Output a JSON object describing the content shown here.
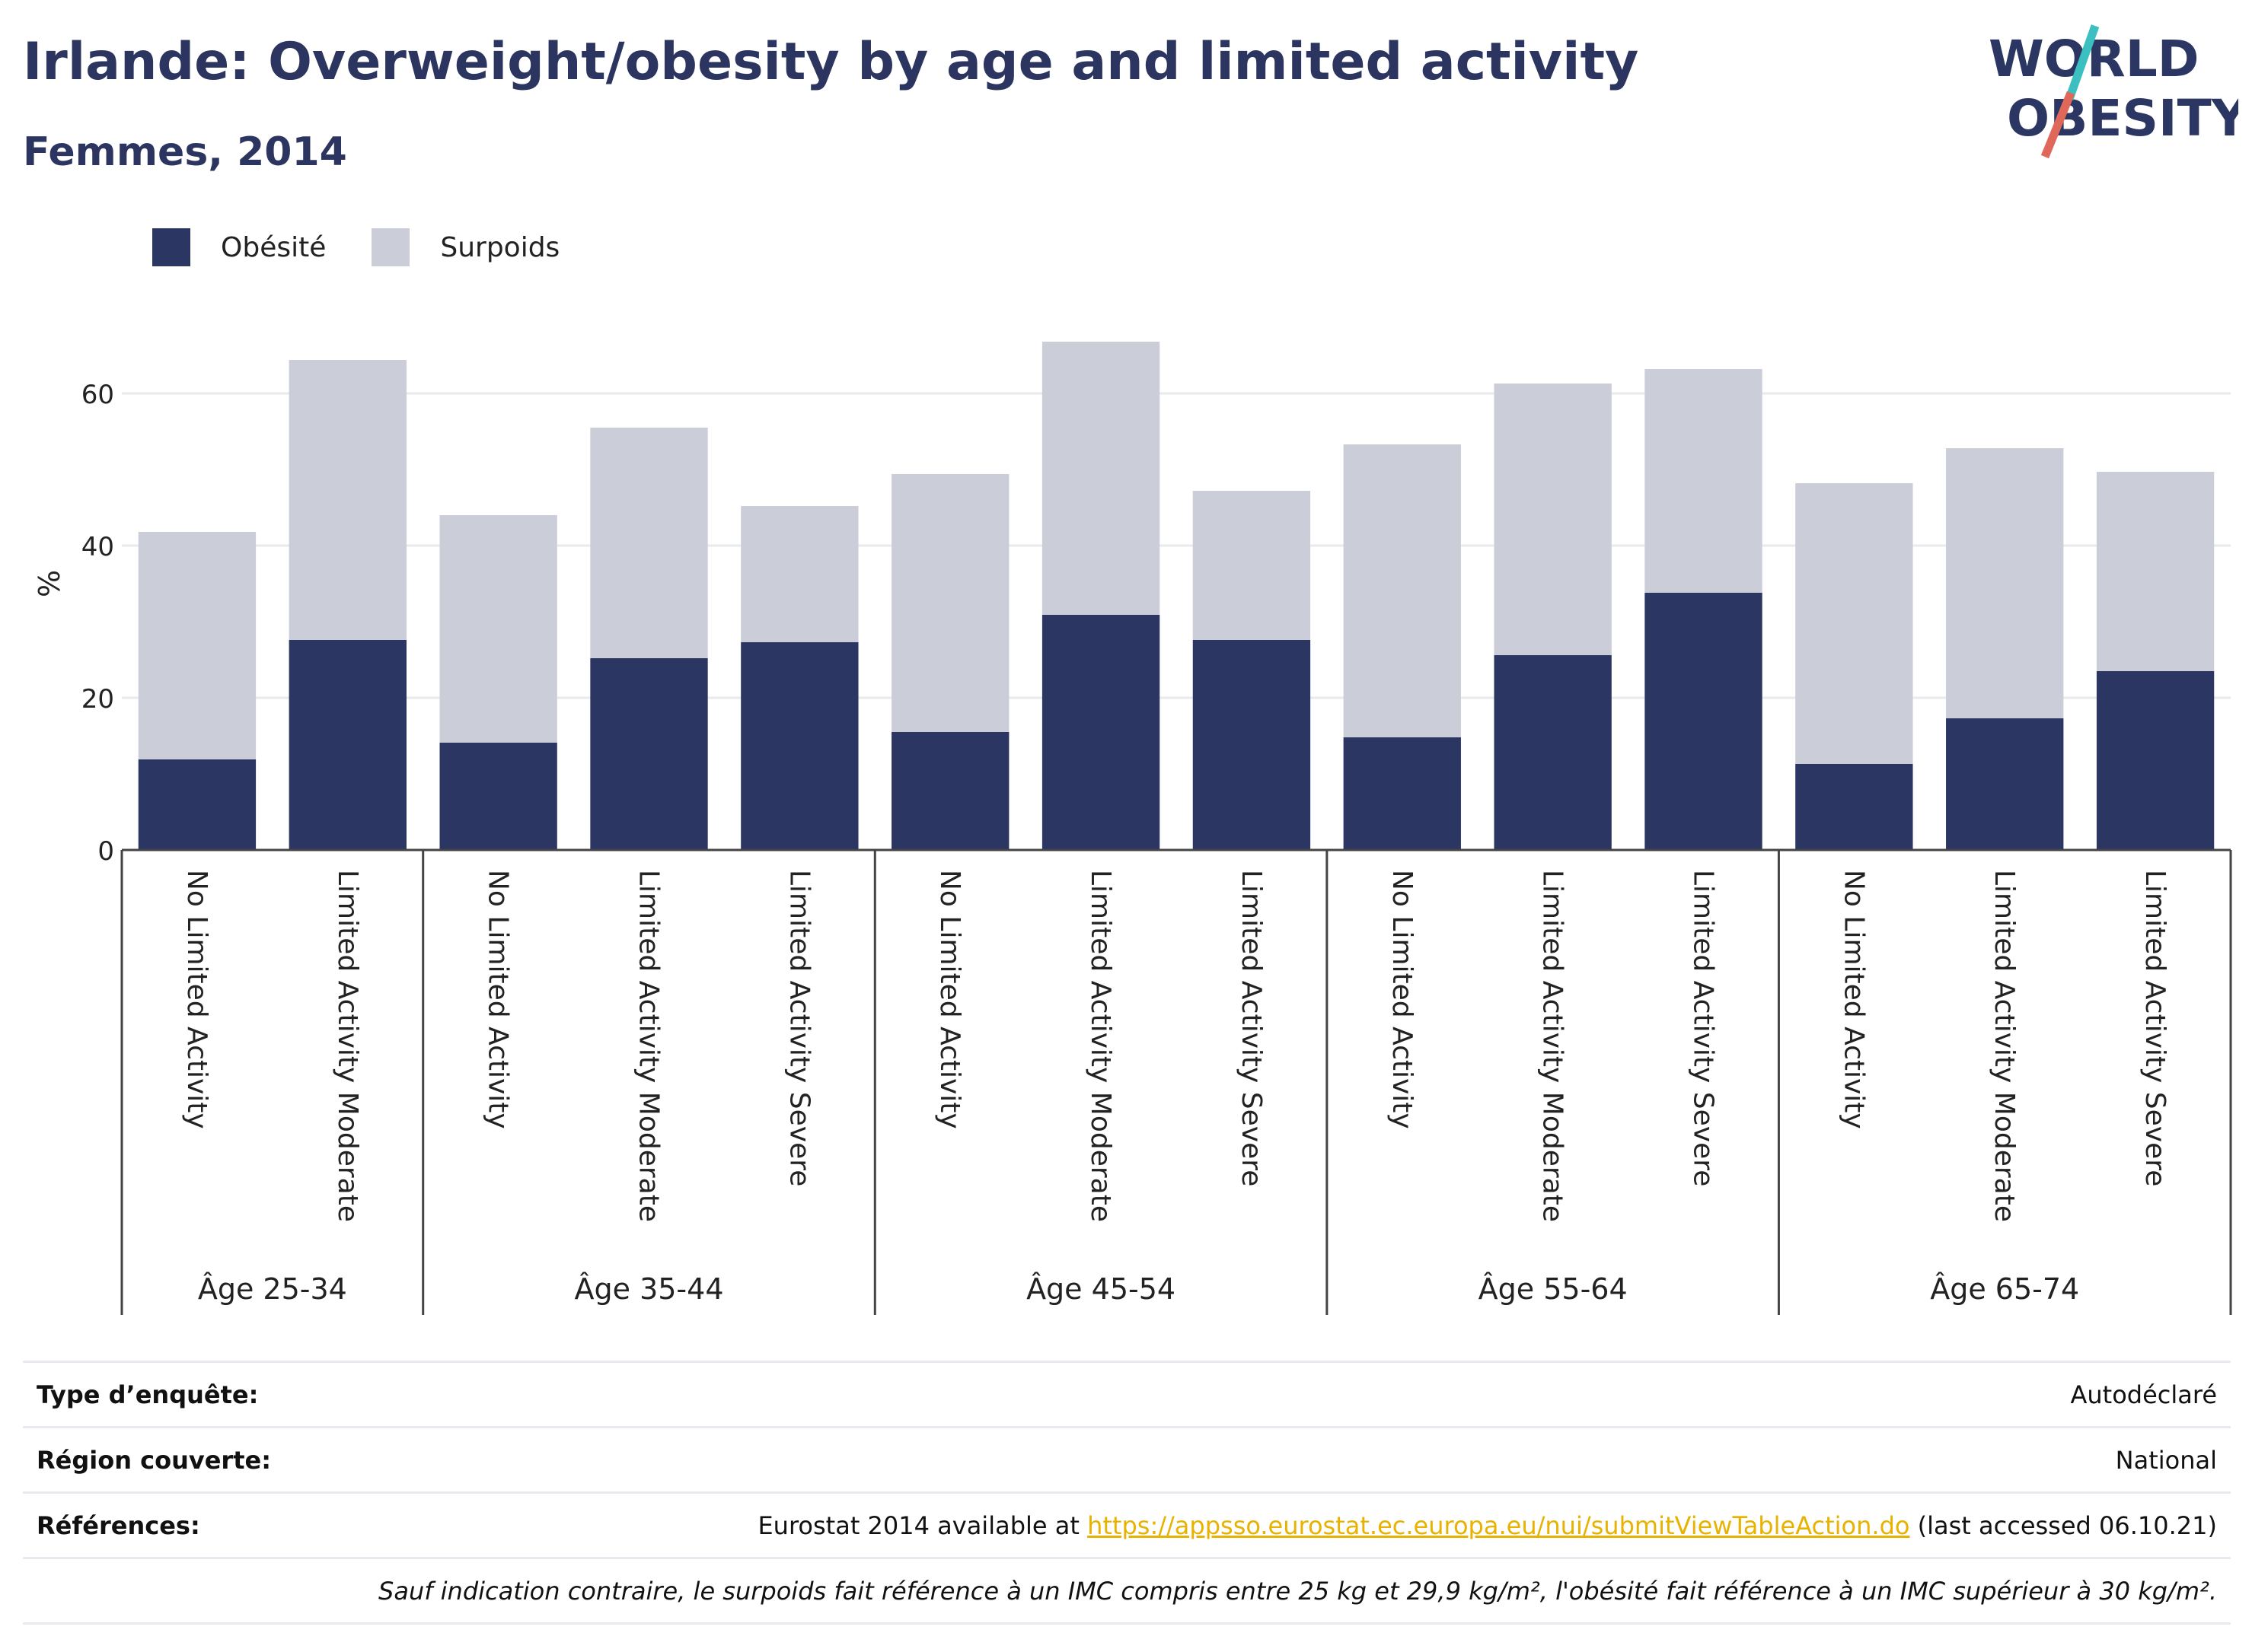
{
  "title": "Irlande: Overweight/obesity by age and limited activity",
  "subtitle": "Femmes, 2014",
  "logo": {
    "line1": "WORLD",
    "line2": "OBESITY"
  },
  "colors": {
    "obesity": "#2b3662",
    "overweight": "#cbcdd9",
    "accent_teal": "#3bbfc1",
    "accent_red": "#e0685a"
  },
  "chart_data": {
    "type": "bar",
    "stacked": true,
    "ylabel": "%",
    "ylim": [
      0,
      70
    ],
    "yticks": [
      0,
      20,
      40,
      60
    ],
    "grid": true,
    "legend_position": "top-left",
    "groups": [
      {
        "label": "Âge 25-34",
        "categories": [
          "No Limited Activity",
          "Limited Activity Moderate"
        ]
      },
      {
        "label": "Âge 35-44",
        "categories": [
          "No Limited Activity",
          "Limited Activity Moderate",
          "Limited Activity Severe"
        ]
      },
      {
        "label": "Âge 45-54",
        "categories": [
          "No Limited Activity",
          "Limited Activity Moderate",
          "Limited Activity Severe"
        ]
      },
      {
        "label": "Âge 55-64",
        "categories": [
          "No Limited Activity",
          "Limited Activity Moderate",
          "Limited Activity Severe"
        ]
      },
      {
        "label": "Âge 65-74",
        "categories": [
          "No Limited Activity",
          "Limited Activity Moderate",
          "Limited Activity Severe"
        ]
      }
    ],
    "series": [
      {
        "name": "Obésité",
        "values": [
          11.9,
          27.6,
          14.1,
          25.2,
          27.3,
          15.5,
          30.9,
          27.6,
          14.8,
          25.6,
          33.8,
          11.3,
          17.3,
          23.5
        ]
      },
      {
        "name": "Surpoids",
        "values": [
          29.9,
          36.8,
          29.9,
          30.3,
          17.9,
          33.9,
          35.9,
          19.6,
          38.5,
          35.7,
          29.4,
          36.9,
          35.5,
          26.2
        ]
      }
    ]
  },
  "table": {
    "survey_type": {
      "label": "Type d’enquête:",
      "value": "Autodéclaré"
    },
    "region": {
      "label": "Région couverte:",
      "value": "National"
    },
    "references": {
      "label": "Références:",
      "prefix": "Eurostat 2014 available at ",
      "link": "https://appsso.eurostat.ec.europa.eu/nui/submitViewTableAction.do",
      "suffix": " (last accessed 06.10.21)"
    },
    "note": "Sauf indication contraire, le surpoids fait référence à un IMC compris entre 25 kg et 29,9 kg/m², l'obésité fait référence à un IMC supérieur à 30 kg/m²."
  }
}
